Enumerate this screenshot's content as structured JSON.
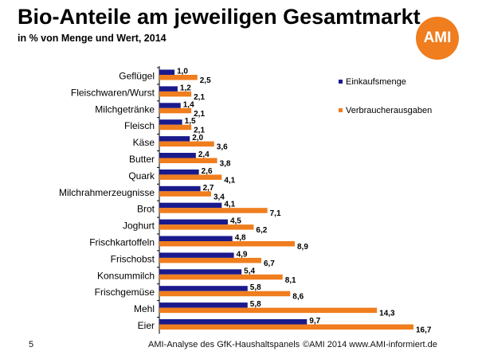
{
  "title": "Bio-Anteile am jeweiligen Gesamtmarkt",
  "subtitle": "in % von Menge und Wert, 2014",
  "logo_text": "AMI",
  "footer": {
    "page": "5",
    "source": "AMI-Analyse des GfK-Haushaltspanels",
    "copyright": "©AMI 2014 www.AMI-informiert.de"
  },
  "colors": {
    "menge": "#1a1a8c",
    "ausgaben": "#f07d1e",
    "logo": "#f07d1e"
  },
  "chart_data": {
    "type": "bar",
    "orientation": "horizontal",
    "title": "Bio-Anteile am jeweiligen Gesamtmarkt",
    "subtitle": "in % von Menge und Wert, 2014",
    "categories": [
      "Geflügel",
      "Fleischwaren/Wurst",
      "Milchgetränke",
      "Fleisch",
      "Käse",
      "Butter",
      "Quark",
      "Milchrahmerzeugnisse",
      "Brot",
      "Joghurt",
      "Frischkartoffeln",
      "Frischobst",
      "Konsummilch",
      "Frischgemüse",
      "Mehl",
      "Eier"
    ],
    "series": [
      {
        "name": "Einkaufsmenge",
        "color": "#1a1a8c",
        "values": [
          1.0,
          1.2,
          1.4,
          1.5,
          2.0,
          2.4,
          2.6,
          2.7,
          4.1,
          4.5,
          4.8,
          4.9,
          5.4,
          5.8,
          5.8,
          9.7
        ]
      },
      {
        "name": "Verbraucherausgaben",
        "color": "#f07d1e",
        "values": [
          2.5,
          2.1,
          2.1,
          2.1,
          3.6,
          3.8,
          4.1,
          3.4,
          7.1,
          6.2,
          8.9,
          6.7,
          8.1,
          8.6,
          14.3,
          16.7
        ]
      }
    ],
    "value_labels": {
      "Einkaufsmenge": [
        "1,0",
        "1,2",
        "1,4",
        "1,5",
        "2,0",
        "2,4",
        "2,6",
        "2,7",
        "4,1",
        "4,5",
        "4,8",
        "4,9",
        "5,4",
        "5,8",
        "5,8",
        "9,7"
      ],
      "Verbraucherausgaben": [
        "2,5",
        "2,1",
        "2,1",
        "2,1",
        "3,6",
        "3,8",
        "4,1",
        "3,4",
        "7,1",
        "6,2",
        "8,9",
        "6,7",
        "8,1",
        "8,6",
        "14,3",
        "16,7"
      ]
    },
    "xlim": [
      0,
      16.7
    ],
    "grid": false,
    "legend": "right"
  }
}
